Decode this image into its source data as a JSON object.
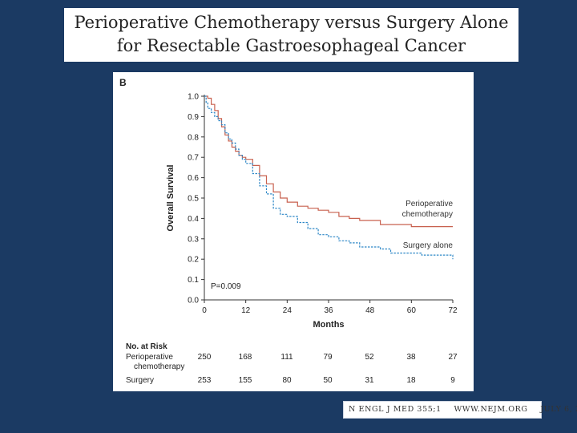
{
  "slide": {
    "title_line1": "Perioperative Chemotherapy versus Surgery Alone",
    "title_line2": "for Resectable Gastroesophageal Cancer"
  },
  "citation": {
    "journal": "N ENGL J MED 355;1",
    "site": "WWW.NEJM.ORG",
    "date": "JULY 6, 2006"
  },
  "chart_data": {
    "type": "line",
    "panel_label": "B",
    "xlabel": "Months",
    "ylabel": "Overall Survival",
    "xlim": [
      0,
      72
    ],
    "ylim": [
      0,
      1.0
    ],
    "xticks": [
      "0",
      "12",
      "24",
      "36",
      "48",
      "60",
      "72"
    ],
    "yticks": [
      "0.0",
      "0.1",
      "0.2",
      "0.3",
      "0.4",
      "0.5",
      "0.6",
      "0.7",
      "0.8",
      "0.9",
      "1.0"
    ],
    "annotation": "P=0.009",
    "series": [
      {
        "name": "Perioperative chemotherapy",
        "color": "#c8614f",
        "style": "solid",
        "label_line1": "Perioperative",
        "label_line2": "chemotherapy",
        "x": [
          0,
          1,
          2,
          3,
          4,
          5,
          6,
          7,
          8,
          9,
          10,
          11,
          12,
          14,
          16,
          18,
          20,
          22,
          24,
          27,
          30,
          33,
          36,
          39,
          42,
          45,
          48,
          51,
          54,
          57,
          60,
          66,
          72
        ],
        "y": [
          1.0,
          0.99,
          0.96,
          0.93,
          0.89,
          0.85,
          0.81,
          0.78,
          0.75,
          0.73,
          0.71,
          0.7,
          0.69,
          0.66,
          0.61,
          0.57,
          0.53,
          0.5,
          0.48,
          0.46,
          0.45,
          0.44,
          0.43,
          0.41,
          0.4,
          0.39,
          0.39,
          0.37,
          0.37,
          0.37,
          0.36,
          0.36,
          0.36
        ]
      },
      {
        "name": "Surgery alone",
        "color": "#2f88c7",
        "style": "dashed",
        "label_line1": "Surgery alone",
        "label_line2": "",
        "x": [
          0,
          0.5,
          1,
          2,
          3,
          4,
          5,
          6,
          7,
          8,
          9,
          10,
          11,
          12,
          14,
          16,
          18,
          20,
          22,
          24,
          27,
          30,
          33,
          36,
          39,
          42,
          45,
          48,
          51,
          54,
          57,
          60,
          63,
          66,
          69,
          71.5,
          72
        ],
        "y": [
          1.0,
          0.97,
          0.94,
          0.92,
          0.9,
          0.88,
          0.86,
          0.82,
          0.79,
          0.77,
          0.74,
          0.71,
          0.69,
          0.67,
          0.62,
          0.56,
          0.52,
          0.45,
          0.42,
          0.41,
          0.38,
          0.35,
          0.32,
          0.31,
          0.29,
          0.28,
          0.26,
          0.26,
          0.25,
          0.23,
          0.23,
          0.23,
          0.22,
          0.22,
          0.22,
          0.22,
          0.2
        ]
      }
    ],
    "risk_table": {
      "header": "No. at Risk",
      "rows": [
        {
          "label_line1": "Perioperative",
          "label_line2": "chemotherapy",
          "values": [
            "250",
            "168",
            "111",
            "79",
            "52",
            "38",
            "27"
          ]
        },
        {
          "label_line1": "Surgery",
          "label_line2": "",
          "values": [
            "253",
            "155",
            "80",
            "50",
            "31",
            "18",
            "9"
          ]
        }
      ]
    }
  }
}
